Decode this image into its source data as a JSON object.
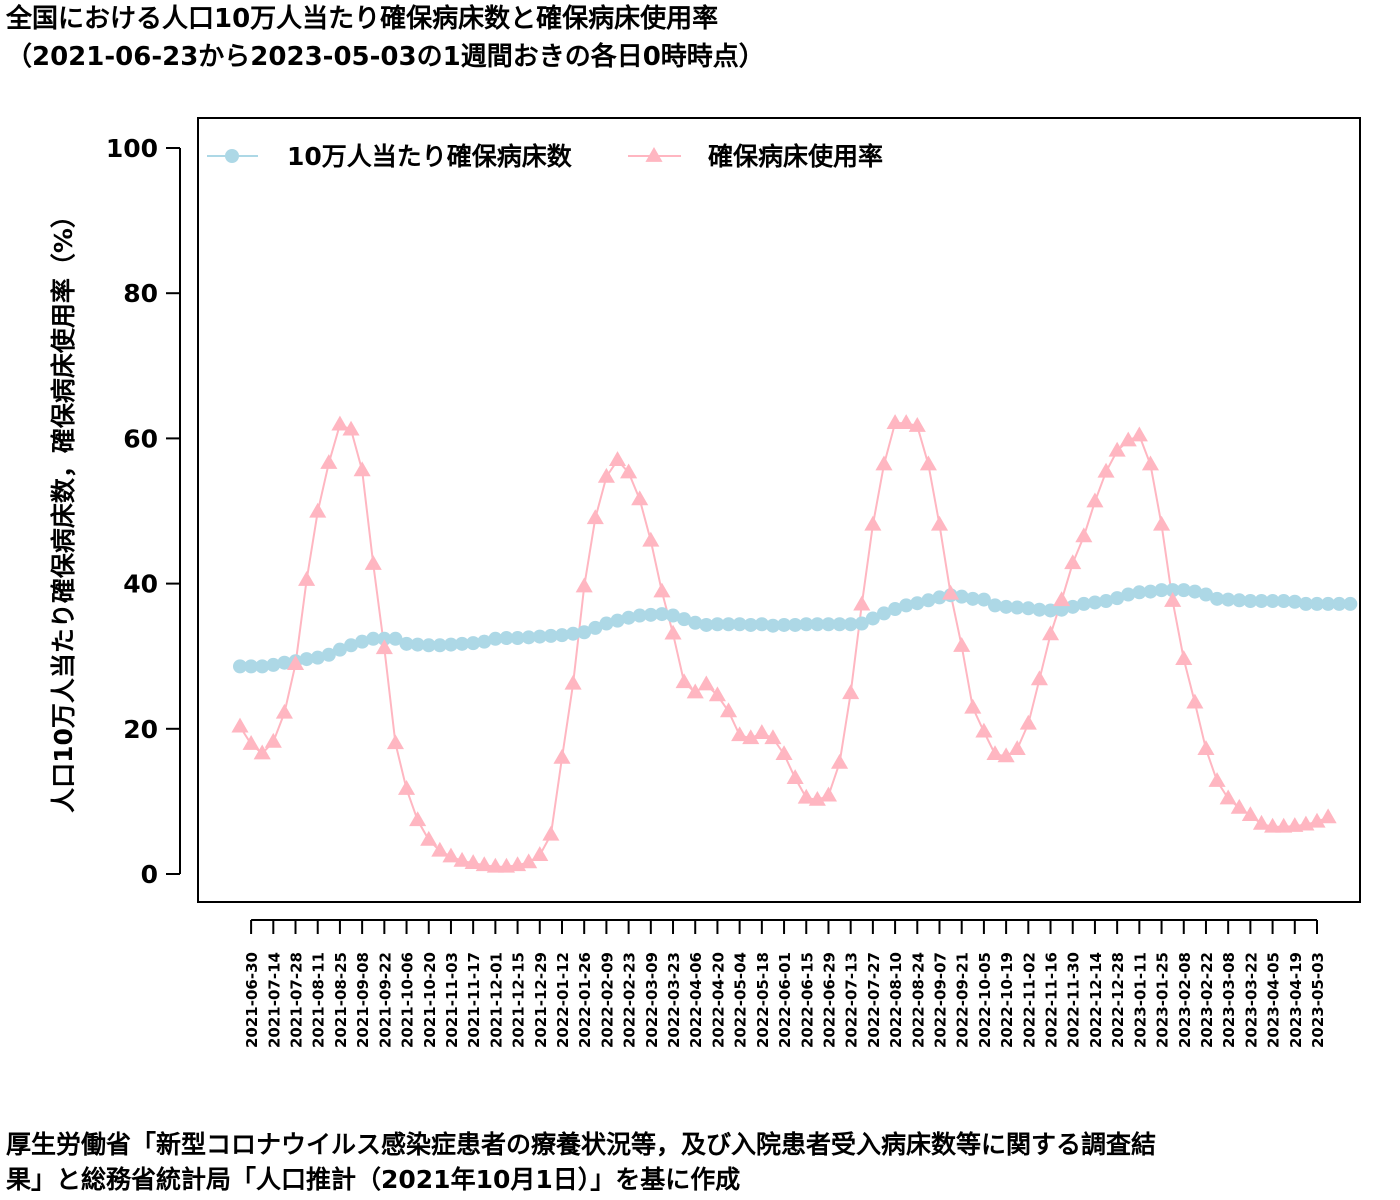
{
  "title": {
    "line1": "全国における人口10万人当たり確保病床数と確保病床使用率",
    "line2": "（2021-06-23から2023-05-03の1週間おきの各日0時時点）"
  },
  "source": {
    "line1": "厚生労働省「新型コロナウイルス感染症患者の療養状況等，及び入院患者受入病床数等に関する調査結",
    "line2": "果」と総務省統計局「人口推計（2021年10月1日）」を基に作成"
  },
  "chart_data": {
    "type": "line",
    "ylabel": "人口10万人当たり確保病床数，確保病床使用率（%）",
    "ylim": [
      0,
      100
    ],
    "yticks": [
      0,
      20,
      40,
      60,
      80,
      100
    ],
    "legend_position": "top-left",
    "grid": false,
    "x_start": "2021-06-23",
    "x_end": "2023-05-03",
    "x_tick_labels": [
      "2021-06-30",
      "2021-07-14",
      "2021-07-28",
      "2021-08-11",
      "2021-08-25",
      "2021-09-08",
      "2021-09-22",
      "2021-10-06",
      "2021-10-20",
      "2021-11-03",
      "2021-11-17",
      "2021-12-01",
      "2021-12-15",
      "2021-12-29",
      "2022-01-12",
      "2022-01-26",
      "2022-02-09",
      "2022-02-23",
      "2022-03-09",
      "2022-03-23",
      "2022-04-06",
      "2022-04-20",
      "2022-05-04",
      "2022-05-18",
      "2022-06-01",
      "2022-06-15",
      "2022-06-29",
      "2022-07-13",
      "2022-07-27",
      "2022-08-10",
      "2022-08-24",
      "2022-09-07",
      "2022-09-21",
      "2022-10-05",
      "2022-10-19",
      "2022-11-02",
      "2022-11-16",
      "2022-11-30",
      "2022-12-14",
      "2022-12-28",
      "2023-01-11",
      "2023-01-25",
      "2023-02-08",
      "2023-02-22",
      "2023-03-08",
      "2023-03-22",
      "2023-04-05",
      "2023-04-19",
      "2023-05-03"
    ],
    "series": [
      {
        "name": "10万人当たり確保病床数",
        "color": "#add8e6",
        "marker": "circle",
        "values": [
          28.6,
          28.6,
          28.6,
          28.8,
          29.1,
          29.3,
          29.6,
          29.8,
          30.2,
          30.9,
          31.5,
          32.0,
          32.4,
          32.4,
          32.4,
          31.7,
          31.6,
          31.5,
          31.5,
          31.6,
          31.7,
          31.8,
          32.0,
          32.4,
          32.5,
          32.5,
          32.6,
          32.7,
          32.8,
          32.9,
          33.1,
          33.3,
          33.9,
          34.5,
          34.9,
          35.3,
          35.6,
          35.7,
          35.8,
          35.6,
          35.1,
          34.6,
          34.3,
          34.4,
          34.4,
          34.4,
          34.3,
          34.4,
          34.2,
          34.3,
          34.3,
          34.4,
          34.4,
          34.4,
          34.4,
          34.4,
          34.5,
          35.2,
          35.9,
          36.5,
          37.0,
          37.3,
          37.7,
          38.1,
          38.4,
          38.2,
          37.9,
          37.8,
          37.0,
          36.8,
          36.7,
          36.6,
          36.4,
          36.3,
          36.4,
          36.8,
          37.2,
          37.4,
          37.6,
          38.0,
          38.5,
          38.8,
          38.9,
          39.1,
          39.1,
          39.1,
          38.9,
          38.5,
          37.9,
          37.8,
          37.7,
          37.6,
          37.6,
          37.6,
          37.6,
          37.5,
          37.2,
          37.2,
          37.2,
          37.2,
          37.2
        ]
      },
      {
        "name": "確保病床使用率",
        "color": "#ffb6c1",
        "marker": "triangle",
        "values": [
          20.3,
          17.9,
          16.6,
          18.2,
          22.2,
          28.9,
          40.5,
          49.9,
          56.6,
          61.9,
          61.2,
          55.6,
          42.7,
          31.1,
          18.0,
          11.7,
          7.4,
          4.7,
          3.2,
          2.4,
          1.8,
          1.5,
          1.2,
          1.0,
          1.0,
          1.2,
          1.6,
          2.6,
          5.4,
          16.0,
          26.2,
          39.6,
          49.0,
          54.7,
          57.0,
          55.3,
          51.6,
          45.9,
          38.9,
          33.1,
          26.4,
          25.0,
          26.1,
          24.6,
          22.4,
          19.1,
          18.7,
          19.4,
          18.7,
          16.5,
          13.2,
          10.5,
          10.2,
          10.8,
          15.3,
          24.9,
          37.1,
          48.1,
          56.4,
          62.1,
          62.1,
          61.7,
          56.4,
          48.1,
          38.6,
          31.4,
          22.9,
          19.6,
          16.5,
          16.2,
          17.2,
          20.7,
          26.8,
          33.0,
          37.7,
          42.8,
          46.5,
          51.3,
          55.4,
          58.3,
          59.7,
          60.4,
          56.4,
          48.1,
          37.6,
          29.6,
          23.6,
          17.2,
          12.8,
          10.4,
          9.1,
          8.1,
          6.9,
          6.5,
          6.5,
          6.6,
          6.8,
          7.2,
          7.8
        ]
      }
    ]
  }
}
